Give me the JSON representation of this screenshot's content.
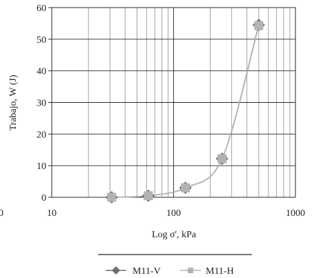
{
  "chart_data": {
    "type": "scatter",
    "title": "",
    "xlabel": "Log σ', kPa",
    "ylabel": "Trabajo, W (J)",
    "xscale": "log",
    "xlim": [
      10,
      1000
    ],
    "ylim": [
      0,
      60
    ],
    "xticks": [
      "10",
      "100",
      "1000"
    ],
    "yticks": [
      "0",
      "10",
      "20",
      "30",
      "40",
      "50",
      "60"
    ],
    "cut_off_tick": "0",
    "grid": true,
    "legend_position": "bottom",
    "series": [
      {
        "name": "M11-V",
        "marker": "diamond",
        "color": "#6e6e6e",
        "x": [
          31,
          62,
          125,
          250,
          500
        ],
        "y": [
          0,
          0.5,
          3.0,
          12.2,
          54.5
        ]
      },
      {
        "name": "M11-H",
        "marker": "square",
        "color": "#b3b3b3",
        "x": [
          31,
          62,
          125,
          250,
          500
        ],
        "y": [
          0,
          0.5,
          3.0,
          12.2,
          54.3
        ]
      }
    ]
  }
}
